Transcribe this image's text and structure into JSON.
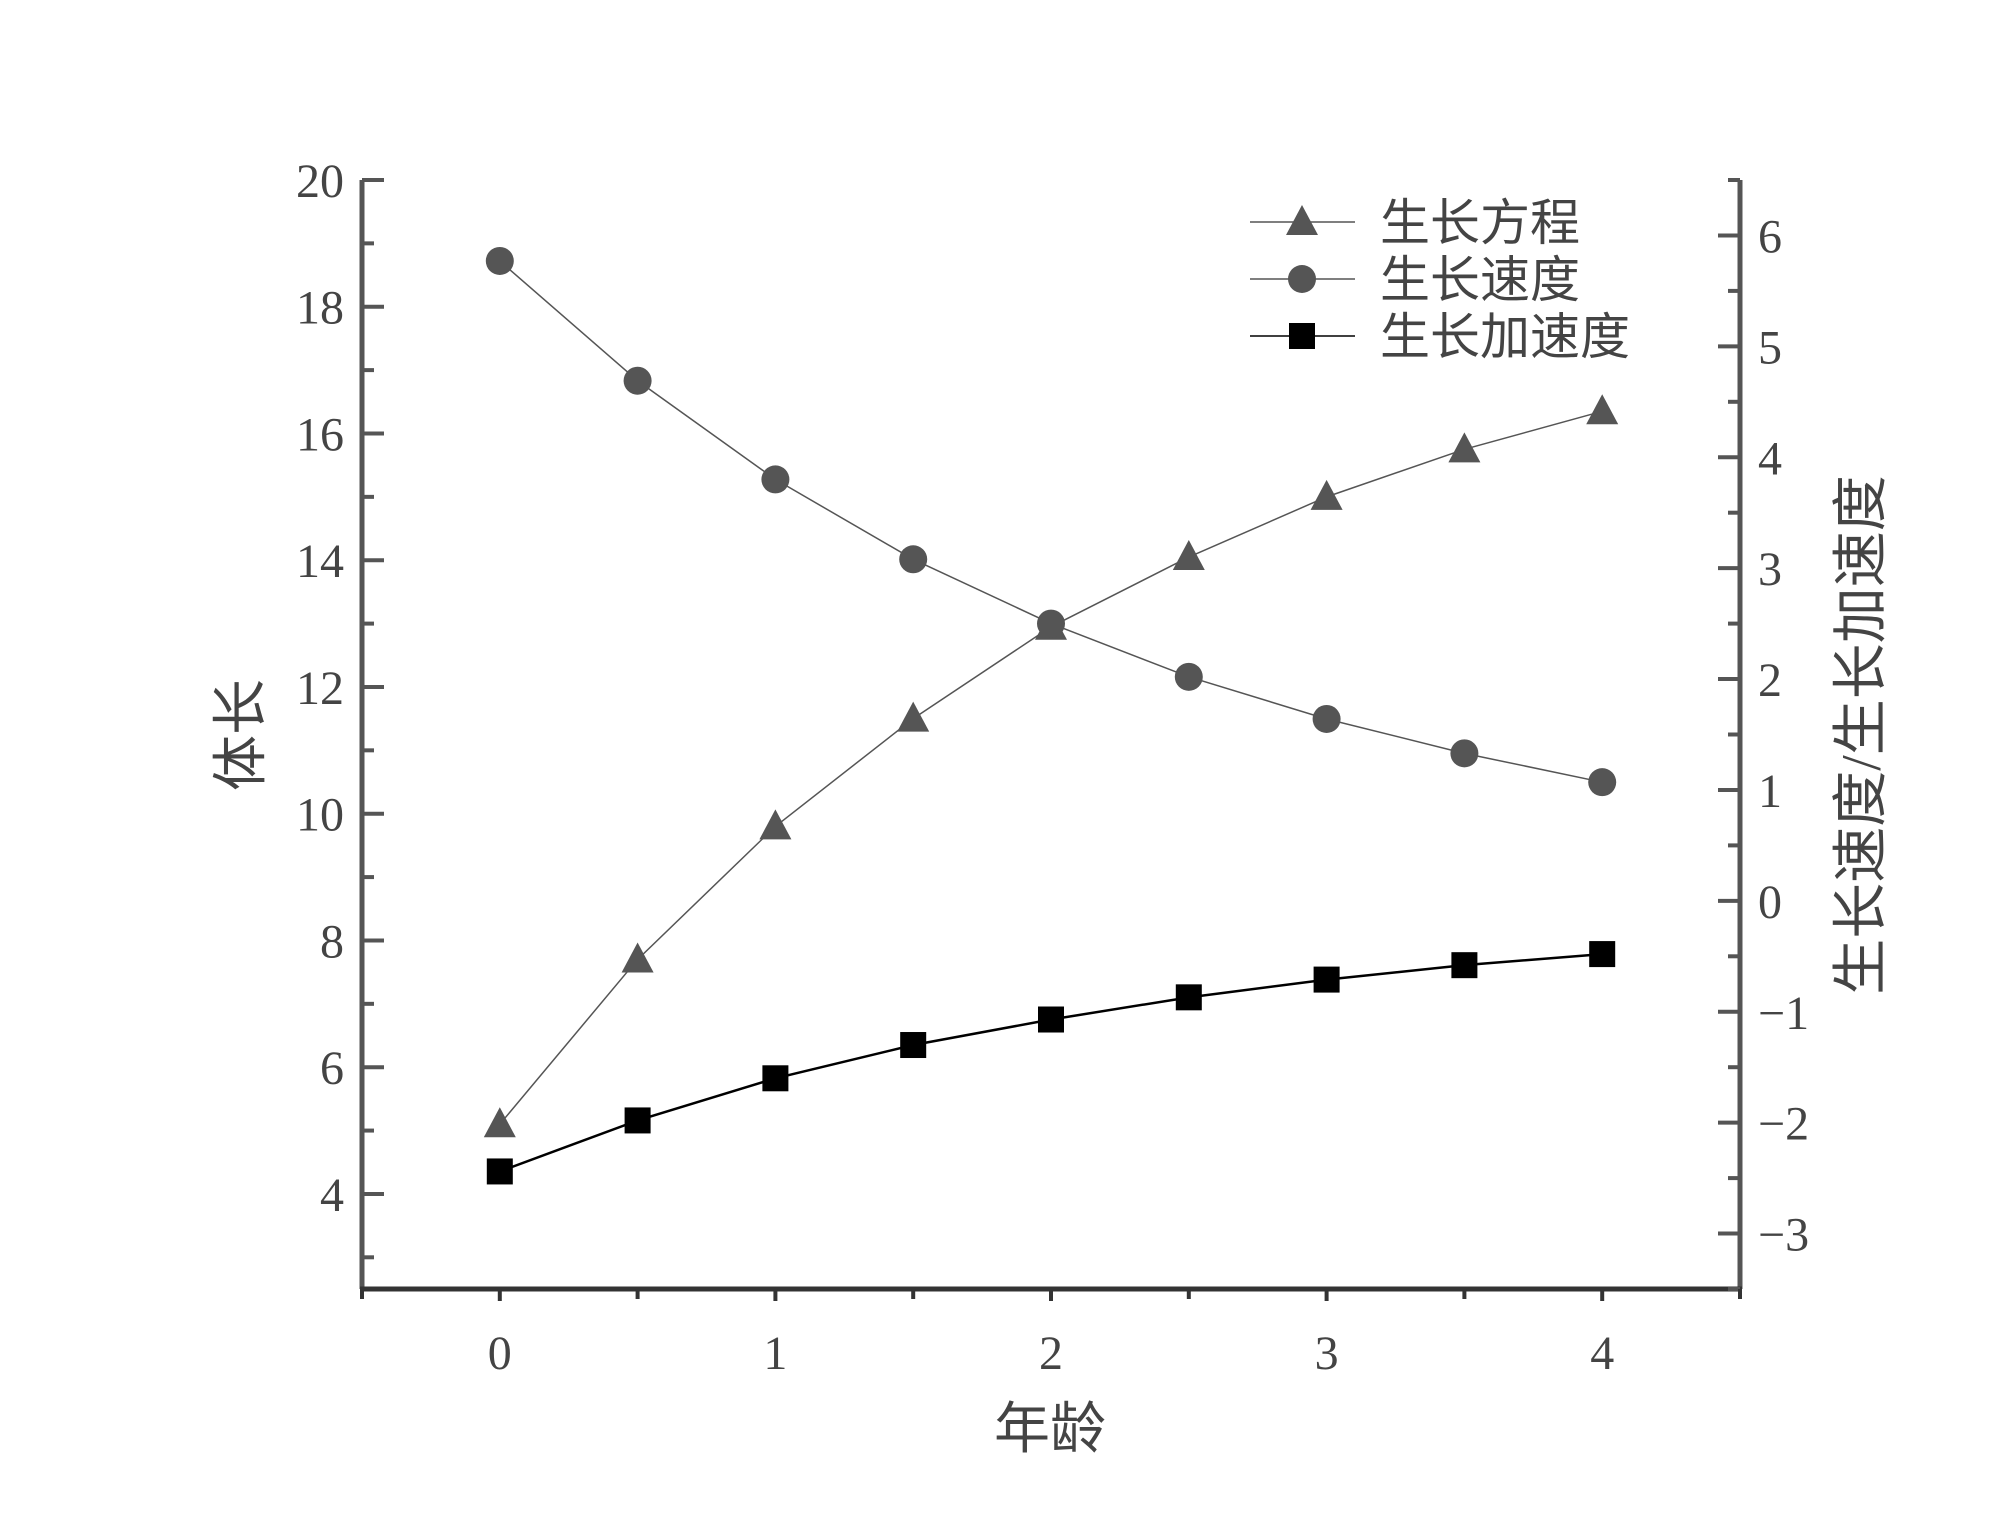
{
  "chart_data": {
    "type": "line",
    "x": [
      0,
      0.5,
      1,
      1.5,
      2,
      2.5,
      3,
      3.5,
      4
    ],
    "xlabel": "年龄",
    "ylabel": "体长",
    "y2label": "生长速度/生长加速度",
    "xlim": [
      -0.5,
      4.5
    ],
    "ylim": [
      2.5,
      20
    ],
    "y2lim": [
      -3.5,
      6.5
    ],
    "xticks": [
      "0",
      "1",
      "2",
      "3",
      "4"
    ],
    "yticks": [
      "4",
      "6",
      "8",
      "10",
      "12",
      "14",
      "16",
      "18",
      "20"
    ],
    "y2ticks": [
      "−3",
      "−2",
      "−1",
      "0",
      "1",
      "2",
      "3",
      "4",
      "5",
      "6"
    ],
    "grid": false,
    "legend_position": "top-right",
    "series": [
      {
        "name": "生长方程",
        "axis": "left",
        "marker": "triangle",
        "color": "#555555",
        "values": [
          5.1,
          7.7,
          9.8,
          11.5,
          12.95,
          14.05,
          15.0,
          15.75,
          16.35
        ]
      },
      {
        "name": "生长速度",
        "axis": "right",
        "marker": "circle",
        "color": "#555555",
        "values": [
          5.77,
          4.69,
          3.8,
          3.08,
          2.5,
          2.02,
          1.64,
          1.33,
          1.07
        ]
      },
      {
        "name": "生长加速度",
        "axis": "right",
        "marker": "square",
        "color": "#000000",
        "values": [
          -2.44,
          -1.98,
          -1.6,
          -1.3,
          -1.07,
          -0.87,
          -0.71,
          -0.58,
          -0.48
        ]
      }
    ]
  }
}
